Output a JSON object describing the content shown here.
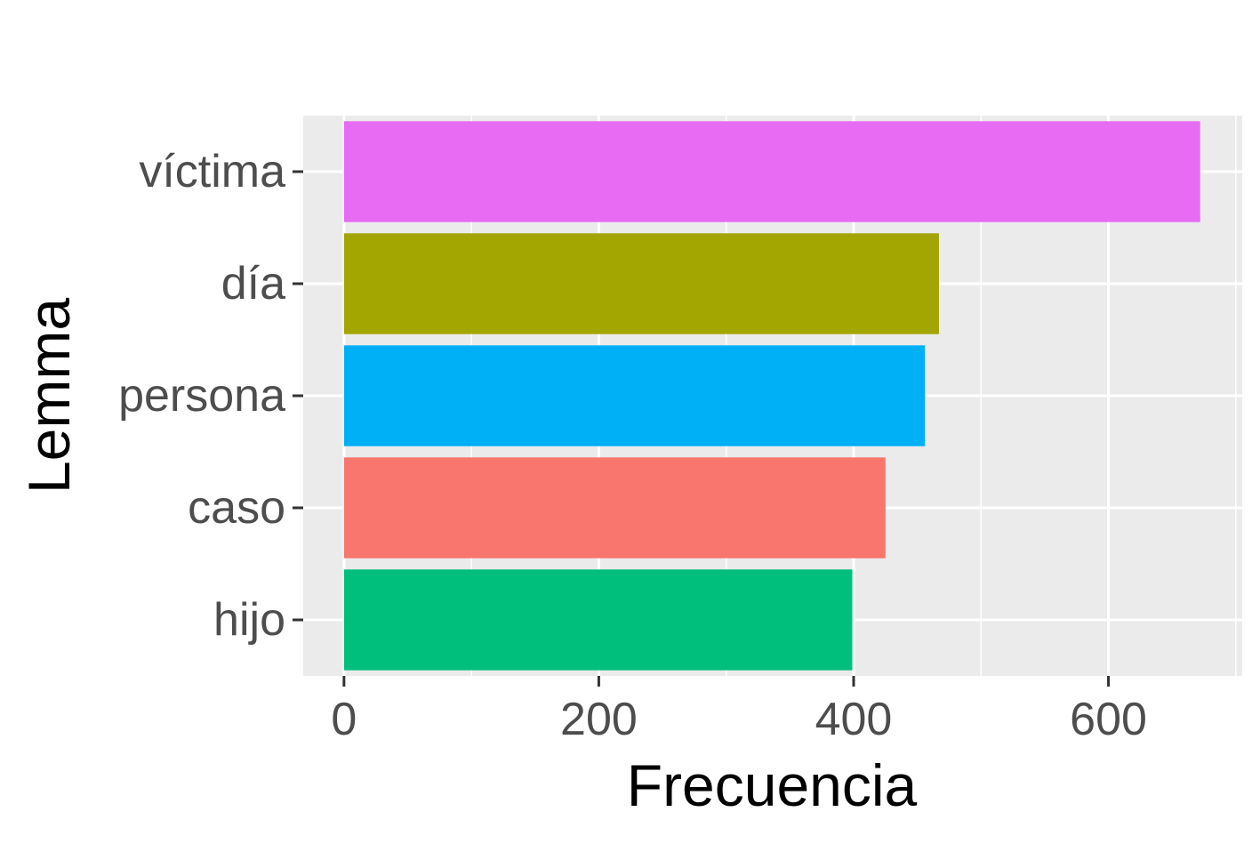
{
  "chart_data": {
    "type": "bar",
    "orientation": "horizontal",
    "title": "",
    "xlabel": "Frecuencia",
    "ylabel": "Lemma",
    "categories": [
      "víctima",
      "día",
      "persona",
      "caso",
      "hijo"
    ],
    "values": [
      672,
      467,
      456,
      425,
      399
    ],
    "colors": [
      "#E76BF3",
      "#A3A500",
      "#00B0F6",
      "#F8766D",
      "#00BF7D"
    ],
    "xlim": [
      -32,
      705
    ],
    "x_ticks": [
      0,
      200,
      400,
      600
    ],
    "x_tick_labels": [
      "0",
      "200",
      "400",
      "600"
    ],
    "x_minor_ticks": [
      100,
      300,
      500,
      700
    ],
    "grid": true,
    "legend": "none",
    "panel_background": "#EBEBEB",
    "grid_color": "#FFFFFF"
  }
}
